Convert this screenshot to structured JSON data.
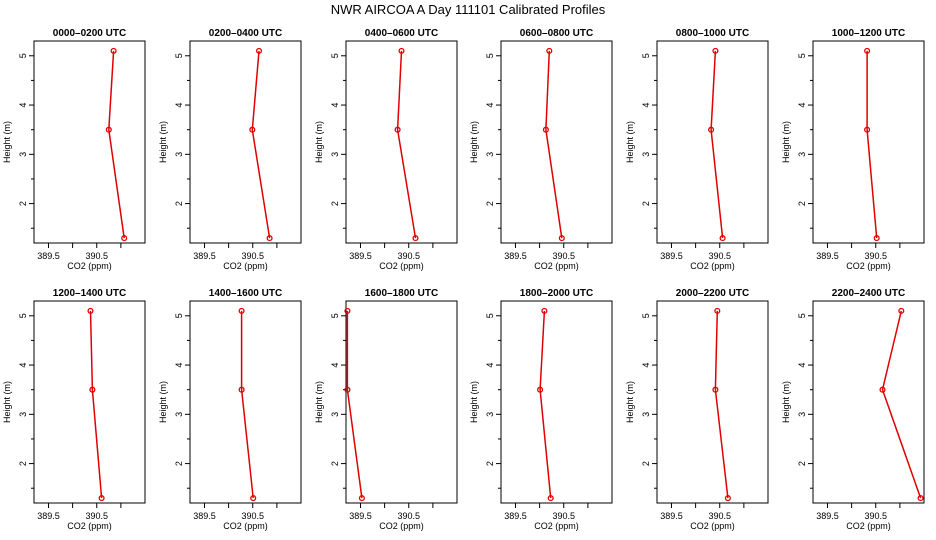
{
  "title": "NWR AIRCOA A  Day 111101  Calibrated Profiles",
  "colors": {
    "series": "#e00000",
    "axes": "#000000",
    "background": "#ffffff"
  },
  "chart_data": [
    {
      "type": "line",
      "title": "0000–0200 UTC",
      "xlabel": "CO2 (ppm)",
      "ylabel": "Height (m)",
      "xlim": [
        389.2,
        391.5
      ],
      "ylim": [
        1.2,
        5.3
      ],
      "xticks": [
        389.5,
        390.5
      ],
      "xtick_labels": [
        "389.5",
        "390.5"
      ],
      "yticks": [
        2,
        3,
        4,
        5
      ],
      "ytick_labels": [
        "2",
        "3",
        "4",
        "5"
      ],
      "series": [
        {
          "x": [
            390.85,
            390.75,
            391.07
          ],
          "y": [
            5.1,
            3.5,
            1.3
          ]
        }
      ]
    },
    {
      "type": "line",
      "title": "0200–0400 UTC",
      "xlabel": "CO2 (ppm)",
      "ylabel": "Height (m)",
      "xlim": [
        389.2,
        391.5
      ],
      "ylim": [
        1.2,
        5.3
      ],
      "xticks": [
        389.5,
        390.5
      ],
      "xtick_labels": [
        "389.5",
        "390.5"
      ],
      "yticks": [
        2,
        3,
        4,
        5
      ],
      "ytick_labels": [
        "2",
        "3",
        "4",
        "5"
      ],
      "series": [
        {
          "x": [
            390.63,
            390.49,
            390.85
          ],
          "y": [
            5.1,
            3.5,
            1.3
          ]
        }
      ]
    },
    {
      "type": "line",
      "title": "0400–0600 UTC",
      "xlabel": "CO2 (ppm)",
      "ylabel": "Height (m)",
      "xlim": [
        389.2,
        391.5
      ],
      "ylim": [
        1.2,
        5.3
      ],
      "xticks": [
        389.5,
        390.5
      ],
      "xtick_labels": [
        "389.5",
        "390.5"
      ],
      "yticks": [
        2,
        3,
        4,
        5
      ],
      "ytick_labels": [
        "2",
        "3",
        "4",
        "5"
      ],
      "series": [
        {
          "x": [
            390.35,
            390.27,
            390.64
          ],
          "y": [
            5.1,
            3.5,
            1.3
          ]
        }
      ]
    },
    {
      "type": "line",
      "title": "0600–0800 UTC",
      "xlabel": "CO2 (ppm)",
      "ylabel": "Height (m)",
      "xlim": [
        389.2,
        391.5
      ],
      "ylim": [
        1.2,
        5.3
      ],
      "xticks": [
        389.5,
        390.5
      ],
      "xtick_labels": [
        "389.5",
        "390.5"
      ],
      "yticks": [
        2,
        3,
        4,
        5
      ],
      "ytick_labels": [
        "2",
        "3",
        "4",
        "5"
      ],
      "series": [
        {
          "x": [
            390.2,
            390.13,
            390.46
          ],
          "y": [
            5.1,
            3.5,
            1.3
          ]
        }
      ]
    },
    {
      "type": "line",
      "title": "0800–1000 UTC",
      "xlabel": "CO2 (ppm)",
      "ylabel": "Height (m)",
      "xlim": [
        389.2,
        391.5
      ],
      "ylim": [
        1.2,
        5.3
      ],
      "xticks": [
        389.5,
        390.5
      ],
      "xtick_labels": [
        "389.5",
        "390.5"
      ],
      "yticks": [
        2,
        3,
        4,
        5
      ],
      "ytick_labels": [
        "2",
        "3",
        "4",
        "5"
      ],
      "series": [
        {
          "x": [
            390.41,
            390.32,
            390.56
          ],
          "y": [
            5.1,
            3.5,
            1.3
          ]
        }
      ]
    },
    {
      "type": "line",
      "title": "1000–1200 UTC",
      "xlabel": "CO2 (ppm)",
      "ylabel": "Height (m)",
      "xlim": [
        389.2,
        391.5
      ],
      "ylim": [
        1.2,
        5.3
      ],
      "xticks": [
        389.5,
        390.5
      ],
      "xtick_labels": [
        "389.5",
        "390.5"
      ],
      "yticks": [
        2,
        3,
        4,
        5
      ],
      "ytick_labels": [
        "2",
        "3",
        "4",
        "5"
      ],
      "series": [
        {
          "x": [
            390.32,
            390.32,
            390.52
          ],
          "y": [
            5.1,
            3.5,
            1.3
          ]
        }
      ]
    },
    {
      "type": "line",
      "title": "1200–1400 UTC",
      "xlabel": "CO2 (ppm)",
      "ylabel": "Height (m)",
      "xlim": [
        389.2,
        391.5
      ],
      "ylim": [
        1.2,
        5.3
      ],
      "xticks": [
        389.5,
        390.5
      ],
      "xtick_labels": [
        "389.5",
        "390.5"
      ],
      "yticks": [
        2,
        3,
        4,
        5
      ],
      "ytick_labels": [
        "2",
        "3",
        "4",
        "5"
      ],
      "series": [
        {
          "x": [
            390.37,
            390.41,
            390.6
          ],
          "y": [
            5.1,
            3.5,
            1.3
          ]
        }
      ]
    },
    {
      "type": "line",
      "title": "1400–1600 UTC",
      "xlabel": "CO2 (ppm)",
      "ylabel": "Height (m)",
      "xlim": [
        389.2,
        391.5
      ],
      "ylim": [
        1.2,
        5.3
      ],
      "xticks": [
        389.5,
        390.5
      ],
      "xtick_labels": [
        "389.5",
        "390.5"
      ],
      "yticks": [
        2,
        3,
        4,
        5
      ],
      "ytick_labels": [
        "2",
        "3",
        "4",
        "5"
      ],
      "series": [
        {
          "x": [
            390.27,
            390.27,
            390.51
          ],
          "y": [
            5.1,
            3.5,
            1.3
          ]
        }
      ]
    },
    {
      "type": "line",
      "title": "1600–1800 UTC",
      "xlabel": "CO2 (ppm)",
      "ylabel": "Height (m)",
      "xlim": [
        389.2,
        391.5
      ],
      "ylim": [
        1.2,
        5.3
      ],
      "xticks": [
        389.5,
        390.5
      ],
      "xtick_labels": [
        "389.5",
        "390.5"
      ],
      "yticks": [
        2,
        3,
        4,
        5
      ],
      "ytick_labels": [
        "2",
        "3",
        "4",
        "5"
      ],
      "series": [
        {
          "x": [
            389.23,
            389.23,
            389.53
          ],
          "y": [
            5.1,
            3.5,
            1.3
          ]
        }
      ]
    },
    {
      "type": "line",
      "title": "1800–2000 UTC",
      "xlabel": "CO2 (ppm)",
      "ylabel": "Height (m)",
      "xlim": [
        389.2,
        391.5
      ],
      "ylim": [
        1.2,
        5.3
      ],
      "xticks": [
        389.5,
        390.5
      ],
      "xtick_labels": [
        "389.5",
        "390.5"
      ],
      "yticks": [
        2,
        3,
        4,
        5
      ],
      "ytick_labels": [
        "2",
        "3",
        "4",
        "5"
      ],
      "series": [
        {
          "x": [
            390.1,
            390.01,
            390.23
          ],
          "y": [
            5.1,
            3.5,
            1.3
          ]
        }
      ]
    },
    {
      "type": "line",
      "title": "2000–2200 UTC",
      "xlabel": "CO2 (ppm)",
      "ylabel": "Height (m)",
      "xlim": [
        389.2,
        391.5
      ],
      "ylim": [
        1.2,
        5.3
      ],
      "xticks": [
        389.5,
        390.5
      ],
      "xtick_labels": [
        "389.5",
        "390.5"
      ],
      "yticks": [
        2,
        3,
        4,
        5
      ],
      "ytick_labels": [
        "2",
        "3",
        "4",
        "5"
      ],
      "series": [
        {
          "x": [
            390.45,
            390.41,
            390.67
          ],
          "y": [
            5.1,
            3.5,
            1.3
          ]
        }
      ]
    },
    {
      "type": "line",
      "title": "2200–2400 UTC",
      "xlabel": "CO2 (ppm)",
      "ylabel": "Height (m)",
      "xlim": [
        389.2,
        391.5
      ],
      "ylim": [
        1.2,
        5.3
      ],
      "xticks": [
        389.5,
        390.5
      ],
      "xtick_labels": [
        "389.5",
        "390.5"
      ],
      "yticks": [
        2,
        3,
        4,
        5
      ],
      "ytick_labels": [
        "2",
        "3",
        "4",
        "5"
      ],
      "series": [
        {
          "x": [
            391.03,
            390.64,
            391.43
          ],
          "y": [
            5.1,
            3.5,
            1.3
          ]
        }
      ]
    }
  ]
}
